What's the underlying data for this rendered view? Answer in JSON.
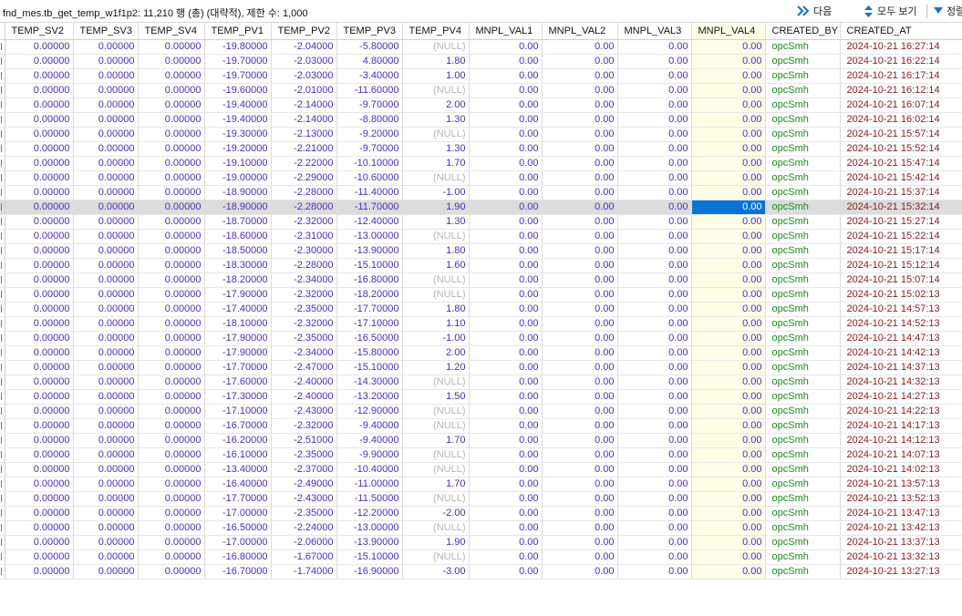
{
  "toolbar": {
    "title": "fnd_mes.tb_get_temp_w1f1p2: 11,210 행 (총) (대략적), 제한 수: 1,000",
    "next_label": "다음",
    "show_all_label": "모두 보기",
    "sort_label": "정렬"
  },
  "columns": [
    "TEMP_SV2",
    "TEMP_SV3",
    "TEMP_SV4",
    "TEMP_PV1",
    "TEMP_PV2",
    "TEMP_PV3",
    "TEMP_PV4",
    "MNPL_VAL1",
    "MNPL_VAL2",
    "MNPL_VAL3",
    "MNPL_VAL4",
    "CREATED_BY",
    "CREATED_AT"
  ],
  "selected_row": 11,
  "current_col": 10,
  "rows": [
    [
      "0.00000",
      "0.00000",
      "0.00000",
      "-19.80000",
      "-2.04000",
      "-5.80000",
      "(NULL)",
      "0.00",
      "0.00",
      "0.00",
      "0.00",
      "opcSmh",
      "2024-10-21 16:27:14"
    ],
    [
      "0.00000",
      "0.00000",
      "0.00000",
      "-19.70000",
      "-2.03000",
      "4.80000",
      "1.80",
      "0.00",
      "0.00",
      "0.00",
      "0.00",
      "opcSmh",
      "2024-10-21 16:22:14"
    ],
    [
      "0.00000",
      "0.00000",
      "0.00000",
      "-19.70000",
      "-2.03000",
      "-3.40000",
      "1.00",
      "0.00",
      "0.00",
      "0.00",
      "0.00",
      "opcSmh",
      "2024-10-21 16:17:14"
    ],
    [
      "0.00000",
      "0.00000",
      "0.00000",
      "-19.60000",
      "-2.01000",
      "-11.60000",
      "(NULL)",
      "0.00",
      "0.00",
      "0.00",
      "0.00",
      "opcSmh",
      "2024-10-21 16:12:14"
    ],
    [
      "0.00000",
      "0.00000",
      "0.00000",
      "-19.40000",
      "-2.14000",
      "-9.70000",
      "2.00",
      "0.00",
      "0.00",
      "0.00",
      "0.00",
      "opcSmh",
      "2024-10-21 16:07:14"
    ],
    [
      "0.00000",
      "0.00000",
      "0.00000",
      "-19.40000",
      "-2.14000",
      "-8.80000",
      "1.30",
      "0.00",
      "0.00",
      "0.00",
      "0.00",
      "opcSmh",
      "2024-10-21 16:02:14"
    ],
    [
      "0.00000",
      "0.00000",
      "0.00000",
      "-19.30000",
      "-2.13000",
      "-9.20000",
      "(NULL)",
      "0.00",
      "0.00",
      "0.00",
      "0.00",
      "opcSmh",
      "2024-10-21 15:57:14"
    ],
    [
      "0.00000",
      "0.00000",
      "0.00000",
      "-19.20000",
      "-2.21000",
      "-9.70000",
      "1.30",
      "0.00",
      "0.00",
      "0.00",
      "0.00",
      "opcSmh",
      "2024-10-21 15:52:14"
    ],
    [
      "0.00000",
      "0.00000",
      "0.00000",
      "-19.10000",
      "-2.22000",
      "-10.10000",
      "1.70",
      "0.00",
      "0.00",
      "0.00",
      "0.00",
      "opcSmh",
      "2024-10-21 15:47:14"
    ],
    [
      "0.00000",
      "0.00000",
      "0.00000",
      "-19.00000",
      "-2.29000",
      "-10.60000",
      "(NULL)",
      "0.00",
      "0.00",
      "0.00",
      "0.00",
      "opcSmh",
      "2024-10-21 15:42:14"
    ],
    [
      "0.00000",
      "0.00000",
      "0.00000",
      "-18.90000",
      "-2.28000",
      "-11.40000",
      "-1.00",
      "0.00",
      "0.00",
      "0.00",
      "0.00",
      "opcSmh",
      "2024-10-21 15:37:14"
    ],
    [
      "0.00000",
      "0.00000",
      "0.00000",
      "-18.90000",
      "-2.28000",
      "-11.70000",
      "1.90",
      "0.00",
      "0.00",
      "0.00",
      "0.00",
      "opcSmh",
      "2024-10-21 15:32:14"
    ],
    [
      "0.00000",
      "0.00000",
      "0.00000",
      "-18.70000",
      "-2.32000",
      "-12.40000",
      "1.30",
      "0.00",
      "0.00",
      "0.00",
      "0.00",
      "opcSmh",
      "2024-10-21 15:27:14"
    ],
    [
      "0.00000",
      "0.00000",
      "0.00000",
      "-18.60000",
      "-2.31000",
      "-13.00000",
      "(NULL)",
      "0.00",
      "0.00",
      "0.00",
      "0.00",
      "opcSmh",
      "2024-10-21 15:22:14"
    ],
    [
      "0.00000",
      "0.00000",
      "0.00000",
      "-18.50000",
      "-2.30000",
      "-13.90000",
      "1.80",
      "0.00",
      "0.00",
      "0.00",
      "0.00",
      "opcSmh",
      "2024-10-21 15:17:14"
    ],
    [
      "0.00000",
      "0.00000",
      "0.00000",
      "-18.30000",
      "-2.28000",
      "-15.10000",
      "1.60",
      "0.00",
      "0.00",
      "0.00",
      "0.00",
      "opcSmh",
      "2024-10-21 15:12:14"
    ],
    [
      "0.00000",
      "0.00000",
      "0.00000",
      "-18.20000",
      "-2.34000",
      "-16.80000",
      "(NULL)",
      "0.00",
      "0.00",
      "0.00",
      "0.00",
      "opcSmh",
      "2024-10-21 15:07:14"
    ],
    [
      "0.00000",
      "0.00000",
      "0.00000",
      "-17.90000",
      "-2.32000",
      "-18.20000",
      "(NULL)",
      "0.00",
      "0.00",
      "0.00",
      "0.00",
      "opcSmh",
      "2024-10-21 15:02:13"
    ],
    [
      "0.00000",
      "0.00000",
      "0.00000",
      "-17.40000",
      "-2.35000",
      "-17.70000",
      "1.80",
      "0.00",
      "0.00",
      "0.00",
      "0.00",
      "opcSmh",
      "2024-10-21 14:57:13"
    ],
    [
      "0.00000",
      "0.00000",
      "0.00000",
      "-18.10000",
      "-2.32000",
      "-17.10000",
      "1.10",
      "0.00",
      "0.00",
      "0.00",
      "0.00",
      "opcSmh",
      "2024-10-21 14:52:13"
    ],
    [
      "0.00000",
      "0.00000",
      "0.00000",
      "-17.90000",
      "-2.35000",
      "-16.50000",
      "-1.00",
      "0.00",
      "0.00",
      "0.00",
      "0.00",
      "opcSmh",
      "2024-10-21 14:47:13"
    ],
    [
      "0.00000",
      "0.00000",
      "0.00000",
      "-17.90000",
      "-2.34000",
      "-15.80000",
      "2.00",
      "0.00",
      "0.00",
      "0.00",
      "0.00",
      "opcSmh",
      "2024-10-21 14:42:13"
    ],
    [
      "0.00000",
      "0.00000",
      "0.00000",
      "-17.70000",
      "-2.47000",
      "-15.10000",
      "1.20",
      "0.00",
      "0.00",
      "0.00",
      "0.00",
      "opcSmh",
      "2024-10-21 14:37:13"
    ],
    [
      "0.00000",
      "0.00000",
      "0.00000",
      "-17.60000",
      "-2.40000",
      "-14.30000",
      "(NULL)",
      "0.00",
      "0.00",
      "0.00",
      "0.00",
      "opcSmh",
      "2024-10-21 14:32:13"
    ],
    [
      "0.00000",
      "0.00000",
      "0.00000",
      "-17.30000",
      "-2.40000",
      "-13.20000",
      "1.50",
      "0.00",
      "0.00",
      "0.00",
      "0.00",
      "opcSmh",
      "2024-10-21 14:27:13"
    ],
    [
      "0.00000",
      "0.00000",
      "0.00000",
      "-17.10000",
      "-2.43000",
      "-12.90000",
      "(NULL)",
      "0.00",
      "0.00",
      "0.00",
      "0.00",
      "opcSmh",
      "2024-10-21 14:22:13"
    ],
    [
      "0.00000",
      "0.00000",
      "0.00000",
      "-16.70000",
      "-2.32000",
      "-9.40000",
      "(NULL)",
      "0.00",
      "0.00",
      "0.00",
      "0.00",
      "opcSmh",
      "2024-10-21 14:17:13"
    ],
    [
      "0.00000",
      "0.00000",
      "0.00000",
      "-16.20000",
      "-2.51000",
      "-9.40000",
      "1.70",
      "0.00",
      "0.00",
      "0.00",
      "0.00",
      "opcSmh",
      "2024-10-21 14:12:13"
    ],
    [
      "0.00000",
      "0.00000",
      "0.00000",
      "-16.10000",
      "-2.35000",
      "-9.90000",
      "(NULL)",
      "0.00",
      "0.00",
      "0.00",
      "0.00",
      "opcSmh",
      "2024-10-21 14:07:13"
    ],
    [
      "0.00000",
      "0.00000",
      "0.00000",
      "-13.40000",
      "-2.37000",
      "-10.40000",
      "(NULL)",
      "0.00",
      "0.00",
      "0.00",
      "0.00",
      "opcSmh",
      "2024-10-21 14:02:13"
    ],
    [
      "0.00000",
      "0.00000",
      "0.00000",
      "-16.40000",
      "-2.49000",
      "-11.00000",
      "1.70",
      "0.00",
      "0.00",
      "0.00",
      "0.00",
      "opcSmh",
      "2024-10-21 13:57:13"
    ],
    [
      "0.00000",
      "0.00000",
      "0.00000",
      "-17.70000",
      "-2.43000",
      "-11.50000",
      "(NULL)",
      "0.00",
      "0.00",
      "0.00",
      "0.00",
      "opcSmh",
      "2024-10-21 13:52:13"
    ],
    [
      "0.00000",
      "0.00000",
      "0.00000",
      "-17.00000",
      "-2.35000",
      "-12.20000",
      "-2.00",
      "0.00",
      "0.00",
      "0.00",
      "0.00",
      "opcSmh",
      "2024-10-21 13:47:13"
    ],
    [
      "0.00000",
      "0.00000",
      "0.00000",
      "-16.50000",
      "-2.24000",
      "-13.00000",
      "(NULL)",
      "0.00",
      "0.00",
      "0.00",
      "0.00",
      "opcSmh",
      "2024-10-21 13:42:13"
    ],
    [
      "0.00000",
      "0.00000",
      "0.00000",
      "-17.00000",
      "-2.06000",
      "-13.90000",
      "1.90",
      "0.00",
      "0.00",
      "0.00",
      "0.00",
      "opcSmh",
      "2024-10-21 13:37:13"
    ],
    [
      "0.00000",
      "0.00000",
      "0.00000",
      "-16.80000",
      "-1.67000",
      "-15.10000",
      "(NULL)",
      "0.00",
      "0.00",
      "0.00",
      "0.00",
      "opcSmh",
      "2024-10-21 13:32:13"
    ],
    [
      "0.00000",
      "0.00000",
      "0.00000",
      "-16.70000",
      "-1.74000",
      "-16.90000",
      "-3.00",
      "0.00",
      "0.00",
      "0.00",
      "0.00",
      "opcSmh",
      "2024-10-21 13:27:13"
    ]
  ],
  "colors": {
    "number": "#4b2cc0",
    "null": "#b5b5b5",
    "created_by": "#1d8a1d",
    "created_at": "#8b1a1a",
    "highlight_col": "#fdfde6",
    "selected_row": "#dcdcdc",
    "current_cell": "#0a74d6"
  },
  "icons": {
    "next": "double-chevron-right-icon",
    "show_all": "up-down-arrow-icon",
    "sort": "triangle-down-icon",
    "filter": "filter-icon"
  }
}
